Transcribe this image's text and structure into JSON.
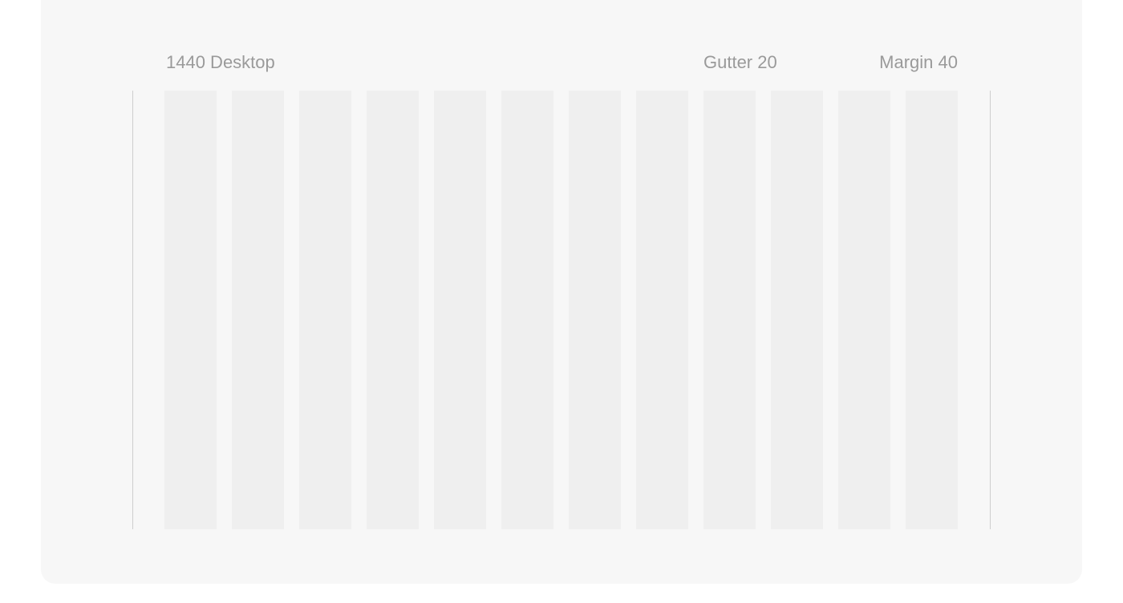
{
  "labels": {
    "breakpoint": "1440 Desktop",
    "gutter": "Gutter 20",
    "margin": "Margin 40"
  },
  "grid": {
    "columns": 12,
    "column_color": "#efefef",
    "background_color": "#f7f7f7",
    "margin_line_color": "#cfcfcf"
  }
}
